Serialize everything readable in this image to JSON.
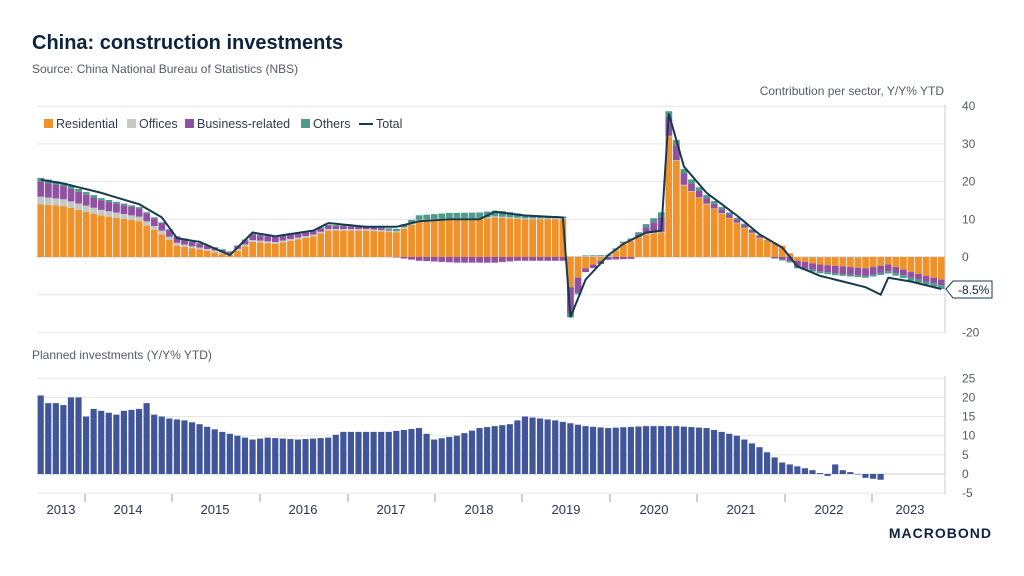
{
  "header": {
    "title": "China: construction investments",
    "subtitle": "Source: China National Bureau of Statistics (NBS)"
  },
  "brand": "MACROBOND",
  "colors": {
    "residential": "#f0922b",
    "offices": "#c5c9c5",
    "business": "#8f52a3",
    "others": "#4f9b8a",
    "total": "#173a4e",
    "planned": "#41559a",
    "grid": "#e6e6e6"
  },
  "chart_data": [
    {
      "type": "bar",
      "stacked": true,
      "panel": "top",
      "right_axis_label": "Contribution per sector, Y/Y% YTD",
      "ylim": [
        -20,
        40
      ],
      "yticks": [
        "40",
        "30",
        "20",
        "10",
        "0",
        "-10",
        "-20"
      ],
      "yticks_values": [
        40,
        30,
        20,
        10,
        0,
        -10,
        -20
      ],
      "end_label": "-8.5%",
      "legend": [
        "Residential",
        "Offices",
        "Business-related",
        "Others",
        "Total"
      ],
      "x_years": [
        "2013",
        "2014",
        "2015",
        "2016",
        "2017",
        "2018",
        "2019",
        "2020",
        "2021",
        "2022",
        "2023"
      ],
      "anchors": {
        "residential": [
          [
            0,
            14
          ],
          [
            3,
            13.5
          ],
          [
            8,
            11
          ],
          [
            13,
            9.5
          ],
          [
            16,
            6
          ],
          [
            18,
            3
          ],
          [
            21,
            2
          ],
          [
            25,
            0.5
          ],
          [
            28,
            4
          ],
          [
            31,
            3.5
          ],
          [
            36,
            5.5
          ],
          [
            38,
            7
          ],
          [
            43,
            7
          ],
          [
            47,
            6.5
          ],
          [
            50,
            9.5
          ],
          [
            54,
            10
          ],
          [
            58,
            10
          ],
          [
            60,
            10.5
          ],
          [
            64,
            10
          ],
          [
            69,
            10
          ],
          [
            70,
            -8
          ],
          [
            72,
            -3
          ],
          [
            75,
            0
          ],
          [
            77,
            3.5
          ],
          [
            80,
            6
          ],
          [
            82,
            6.5
          ],
          [
            83,
            32
          ],
          [
            85,
            19
          ],
          [
            88,
            14
          ],
          [
            92,
            9
          ],
          [
            95,
            5
          ],
          [
            98,
            3
          ],
          [
            100,
            -1
          ],
          [
            103,
            -2
          ],
          [
            106,
            -2.5
          ],
          [
            109,
            -3
          ],
          [
            112,
            -2
          ],
          [
            115,
            -4
          ],
          [
            119,
            -6
          ]
        ],
        "offices": [
          [
            0,
            2
          ],
          [
            8,
            1.5
          ],
          [
            16,
            1
          ],
          [
            20,
            0.5
          ],
          [
            28,
            0.5
          ],
          [
            60,
            0.3
          ],
          [
            110,
            0
          ]
        ],
        "business": [
          [
            0,
            4
          ],
          [
            3,
            3.5
          ],
          [
            8,
            2.5
          ],
          [
            16,
            2
          ],
          [
            21,
            1
          ],
          [
            25,
            0.3
          ],
          [
            28,
            1.5
          ],
          [
            36,
            1
          ],
          [
            45,
            0.5
          ],
          [
            50,
            -1
          ],
          [
            55,
            -1.5
          ],
          [
            60,
            -1.5
          ],
          [
            63,
            -1
          ],
          [
            69,
            -1
          ],
          [
            70,
            -7
          ],
          [
            72,
            -1
          ],
          [
            78,
            -0.5
          ],
          [
            83,
            5
          ],
          [
            86,
            2
          ],
          [
            90,
            1
          ],
          [
            95,
            0.5
          ],
          [
            100,
            -1.5
          ],
          [
            105,
            -2
          ],
          [
            110,
            -2
          ],
          [
            114,
            -1.5
          ],
          [
            119,
            -1.5
          ]
        ],
        "others": [
          [
            0,
            1
          ],
          [
            16,
            0.2
          ],
          [
            45,
            0.2
          ],
          [
            50,
            1.2
          ],
          [
            58,
            1.5
          ],
          [
            61,
            1.5
          ],
          [
            65,
            0.8
          ],
          [
            69,
            0.5
          ],
          [
            70,
            -1
          ],
          [
            72,
            0.2
          ],
          [
            78,
            0.4
          ],
          [
            83,
            1.5
          ],
          [
            88,
            0.8
          ],
          [
            95,
            0.2
          ],
          [
            100,
            -0.5
          ],
          [
            110,
            -0.5
          ],
          [
            119,
            -1
          ]
        ],
        "total": [
          [
            0,
            20.5
          ],
          [
            3,
            19.5
          ],
          [
            8,
            17
          ],
          [
            13,
            14
          ],
          [
            16,
            10.5
          ],
          [
            18,
            5
          ],
          [
            21,
            4
          ],
          [
            25,
            0.5
          ],
          [
            28,
            6.5
          ],
          [
            31,
            5.5
          ],
          [
            36,
            7
          ],
          [
            38,
            9
          ],
          [
            43,
            8
          ],
          [
            47,
            8
          ],
          [
            50,
            9.5
          ],
          [
            54,
            10
          ],
          [
            58,
            10
          ],
          [
            60,
            12
          ],
          [
            64,
            11
          ],
          [
            69,
            10.5
          ],
          [
            70,
            -16
          ],
          [
            72,
            -6
          ],
          [
            75,
            0.5
          ],
          [
            77,
            3.5
          ],
          [
            80,
            6.5
          ],
          [
            82,
            7
          ],
          [
            83,
            38
          ],
          [
            85,
            24
          ],
          [
            88,
            17
          ],
          [
            92,
            11
          ],
          [
            95,
            6
          ],
          [
            98,
            2.5
          ],
          [
            100,
            -2.5
          ],
          [
            103,
            -5
          ],
          [
            106,
            -6.5
          ],
          [
            109,
            -8
          ],
          [
            111,
            -10
          ],
          [
            112,
            -5.5
          ],
          [
            115,
            -6.5
          ],
          [
            119,
            -8.5
          ]
        ]
      }
    },
    {
      "type": "bar",
      "panel": "bottom",
      "title": "Planned investments (Y/Y% YTD)",
      "ylim": [
        -5,
        25
      ],
      "yticks": [
        "25",
        "20",
        "15",
        "10",
        "5",
        "0",
        "-5"
      ],
      "yticks_values": [
        25,
        20,
        15,
        10,
        5,
        0,
        -5
      ],
      "anchors": {
        "planned": [
          [
            0,
            20.5
          ],
          [
            1,
            18.5
          ],
          [
            2,
            18.5
          ],
          [
            3,
            18
          ],
          [
            4,
            20
          ],
          [
            5,
            20
          ],
          [
            6,
            15
          ],
          [
            7,
            17
          ],
          [
            9,
            16
          ],
          [
            10,
            15.5
          ],
          [
            11,
            16.5
          ],
          [
            13,
            17
          ],
          [
            14,
            18.5
          ],
          [
            15,
            15.5
          ],
          [
            17,
            14.5
          ],
          [
            19,
            14
          ],
          [
            21,
            13
          ],
          [
            24,
            11
          ],
          [
            28,
            9
          ],
          [
            30,
            9.5
          ],
          [
            34,
            9
          ],
          [
            38,
            9.5
          ],
          [
            40,
            11
          ],
          [
            46,
            11
          ],
          [
            50,
            12
          ],
          [
            52,
            9
          ],
          [
            55,
            10
          ],
          [
            58,
            12
          ],
          [
            62,
            13
          ],
          [
            64,
            15
          ],
          [
            68,
            14
          ],
          [
            72,
            12.5
          ],
          [
            75,
            12
          ],
          [
            80,
            12.5
          ],
          [
            84,
            12.5
          ],
          [
            88,
            12
          ],
          [
            92,
            10
          ],
          [
            95,
            7
          ],
          [
            98,
            3
          ],
          [
            100,
            2
          ],
          [
            102,
            1
          ],
          [
            104,
            -0.5
          ],
          [
            105,
            2.5
          ],
          [
            106,
            1
          ],
          [
            108,
            0
          ],
          [
            109,
            -1
          ],
          [
            111,
            -1.5
          ]
        ]
      }
    }
  ]
}
